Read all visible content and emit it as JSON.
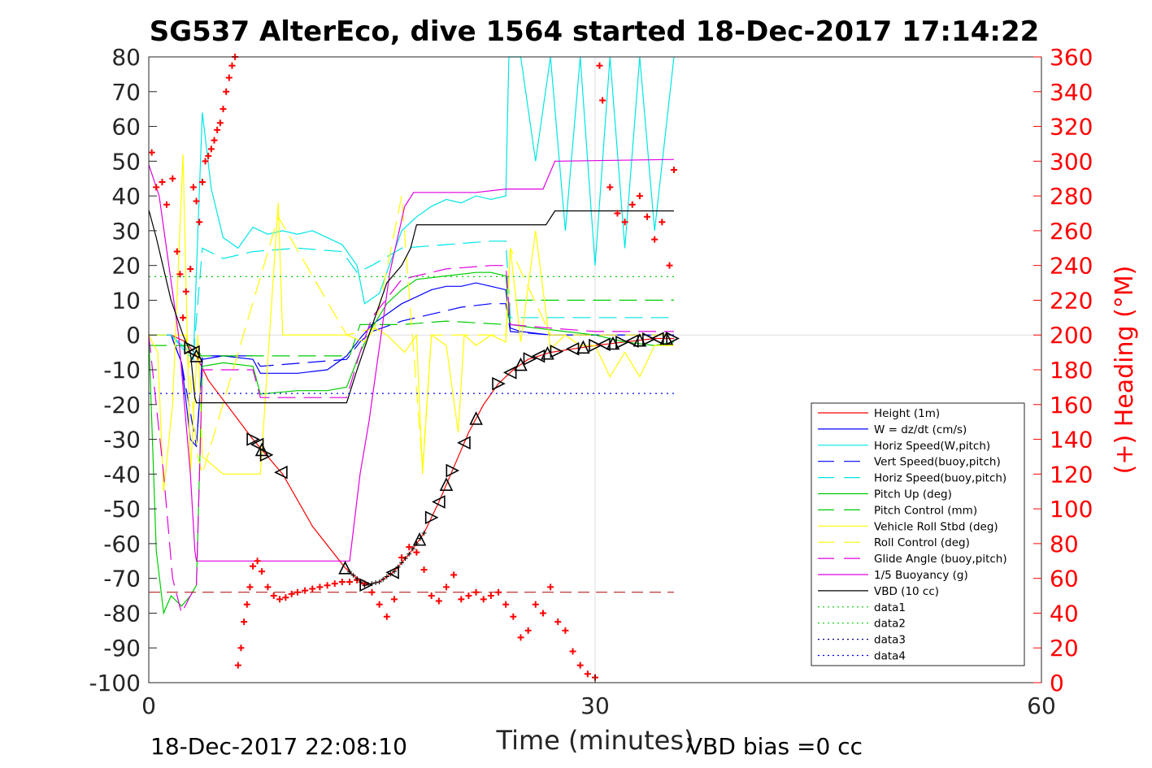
{
  "chart_data": {
    "type": "line",
    "title": "SG537 AlterEco, dive 1564 started 18-Dec-2017 17:14:22",
    "xlabel": "Time (minutes)",
    "ylabel_right": "(+) Heading (°M)",
    "footer_left": "18-Dec-2017 22:08:10",
    "footer_right": "VBD bias =0 cc",
    "xlim": [
      0,
      60
    ],
    "ylim_left": [
      -100,
      80
    ],
    "ylim_right": [
      0,
      360
    ],
    "x_ticks": [
      "0",
      "30",
      "60"
    ],
    "y_left_ticks": [
      "80",
      "70",
      "60",
      "50",
      "40",
      "30",
      "20",
      "10",
      "0",
      "-10",
      "-20",
      "-30",
      "-40",
      "-50",
      "-60",
      "-70",
      "-80",
      "-90",
      "-100"
    ],
    "y_right_ticks": [
      "360",
      "340",
      "320",
      "300",
      "280",
      "260",
      "240",
      "220",
      "200",
      "180",
      "160",
      "140",
      "120",
      "100",
      "80",
      "60",
      "40",
      "20",
      "0"
    ],
    "grid": "x at 30 and y at 0 only",
    "legend_position": "lower-right inside plot",
    "colors": {
      "height": "#ff0000",
      "w": "#0000ff",
      "cyan": "#00e5e5",
      "green": "#00cc00",
      "yellow": "#ffff00",
      "magenta": "#e000e0",
      "black": "#000000",
      "heading": "#ff0000"
    },
    "legend": [
      {
        "label": "Height (1m)",
        "color": "#ff0000",
        "style": "solid"
      },
      {
        "label": "W = dz/dt (cm/s)",
        "color": "#0000ff",
        "style": "solid"
      },
      {
        "label": "Horiz Speed(W,pitch)",
        "color": "#00e5e5",
        "style": "solid"
      },
      {
        "label": "Vert Speed(buoy,pitch)",
        "color": "#0000ff",
        "style": "dashed"
      },
      {
        "label": "Horiz Speed(buoy,pitch)",
        "color": "#00e5e5",
        "style": "dashed"
      },
      {
        "label": "Pitch Up (deg)",
        "color": "#00cc00",
        "style": "solid"
      },
      {
        "label": "Pitch Control (mm)",
        "color": "#00cc00",
        "style": "dashed"
      },
      {
        "label": "Vehicle Roll Stbd (deg)",
        "color": "#ffff00",
        "style": "solid"
      },
      {
        "label": "Roll Control (deg)",
        "color": "#ffff00",
        "style": "dashed"
      },
      {
        "label": "Glide Angle (buoy,pitch)",
        "color": "#e000e0",
        "style": "dashed"
      },
      {
        "label": "1/5 Buoyancy (g)",
        "color": "#e000e0",
        "style": "solid"
      },
      {
        "label": "VBD (10 cc)",
        "color": "#000000",
        "style": "solid"
      },
      {
        "label": "data1",
        "color": "#00cc00",
        "style": "dotted"
      },
      {
        "label": "data2",
        "color": "#00cc00",
        "style": "dotted"
      },
      {
        "label": "data3",
        "color": "#000080",
        "style": "dotted"
      },
      {
        "label": "data4",
        "color": "#0000ff",
        "style": "dotted"
      }
    ],
    "series": [
      {
        "name": "Height (1m)",
        "x": [
          0,
          1.5,
          2.5,
          3.2,
          4,
          7,
          9,
          11,
          13.2,
          14.5,
          15.5,
          16.5,
          17.5,
          18.5,
          19.5,
          20.5,
          21.5,
          22.5,
          23.5,
          24.5,
          25.5,
          27,
          28.5,
          30,
          32,
          34,
          35.3
        ],
        "y": [
          0,
          0,
          -2,
          -6,
          -13,
          -30,
          -40,
          -55,
          -67,
          -72,
          -71,
          -68,
          -63,
          -57,
          -48,
          -38,
          -28,
          -20,
          -14,
          -10,
          -7,
          -5,
          -4,
          -3,
          -2,
          -1,
          -1
        ]
      },
      {
        "name": "W = dz/dt (cm/s)",
        "x": [
          0,
          1.5,
          2.2,
          2.8,
          3.2,
          3.6,
          5,
          7,
          7.5,
          10,
          12,
          13.3,
          14.2,
          15,
          16,
          17,
          18,
          19,
          20,
          21,
          22,
          23,
          24,
          24.3,
          25,
          27,
          30,
          32,
          34,
          35.3
        ],
        "y": [
          0,
          0,
          -8,
          -30,
          -32,
          -7,
          -6,
          -7,
          -11,
          -11,
          -10,
          -6,
          -1,
          3,
          6,
          9,
          11,
          13,
          14,
          14,
          15,
          14,
          13,
          2,
          1,
          0,
          0,
          0,
          0,
          0
        ]
      },
      {
        "name": "Vert Speed(buoy,pitch)",
        "x": [
          0,
          1.5,
          2.2,
          3.2,
          3.6,
          7,
          7.5,
          13.3,
          14.2,
          15,
          17,
          19,
          21,
          23,
          24,
          24.3,
          27,
          30,
          35.3
        ],
        "y": [
          0,
          0,
          -8,
          -32,
          -6,
          -6,
          -9,
          -7,
          -2,
          1,
          4,
          6,
          8,
          9,
          9,
          1,
          0,
          0,
          0
        ]
      },
      {
        "name": "Horiz Speed(W,pitch)",
        "x": [
          0,
          1.5,
          2.5,
          3.0,
          3.3,
          3.6,
          4.2,
          5,
          6,
          7,
          8,
          9,
          10,
          11,
          12,
          13,
          14,
          14.5,
          15.5,
          17,
          18,
          19,
          20,
          21,
          22,
          23,
          24,
          24.2,
          25,
          26,
          27,
          28,
          29,
          30,
          31,
          32,
          33,
          34,
          35.3
        ],
        "y": [
          0,
          0,
          -5,
          -7,
          30,
          64,
          42,
          28,
          25,
          31,
          29,
          30,
          29,
          30,
          28,
          26,
          20,
          9,
          12,
          30,
          34,
          37,
          39,
          38,
          40,
          39,
          40,
          80,
          80,
          50,
          80,
          30,
          80,
          20,
          80,
          25,
          80,
          30,
          80
        ]
      },
      {
        "name": "Horiz Speed(buoy,pitch)",
        "x": [
          0,
          1.5,
          3.0,
          3.6,
          5,
          7,
          10,
          13,
          14,
          15,
          17,
          20,
          23,
          24,
          24.3,
          30,
          35.3
        ],
        "y": [
          0,
          0,
          -6,
          25,
          22,
          24,
          25,
          24,
          18,
          20,
          25,
          26,
          27,
          27,
          5,
          5,
          5
        ]
      },
      {
        "name": "Pitch Up (deg)",
        "x": [
          0,
          0.5,
          1.0,
          1.5,
          2.2,
          2.8,
          3.2,
          3.6,
          5,
          7,
          7.5,
          10,
          12,
          13.3,
          14.2,
          15,
          16,
          17,
          18,
          20,
          22,
          23,
          24,
          24.3,
          26,
          28,
          30,
          32,
          34,
          35.3
        ],
        "y": [
          0,
          -62,
          -80,
          -75,
          -78,
          -75,
          -72,
          -9,
          -8,
          -9,
          -17,
          -16,
          -16,
          -15,
          -5,
          2,
          9,
          13,
          16,
          17,
          18,
          18,
          17,
          3,
          2,
          1,
          0,
          -2,
          -3,
          -2
        ]
      },
      {
        "name": "Pitch Control (mm)",
        "x": [
          0,
          2.5,
          3.2,
          3.5,
          7,
          7.5,
          13,
          13.5,
          14.2,
          17,
          20,
          24,
          24.3,
          30,
          35.3
        ],
        "y": [
          -3,
          -3,
          -3,
          -6,
          -6,
          -6,
          -6,
          -6,
          3,
          3,
          4,
          3,
          10,
          10,
          10
        ]
      },
      {
        "name": "Vehicle Roll Stbd (deg)",
        "x": [
          0,
          0.6,
          1.0,
          1.6,
          2.3,
          2.8,
          3.3,
          3.6,
          5,
          7,
          7.5,
          8.7,
          9.0,
          13.3,
          14.5,
          15.2,
          16,
          17.2,
          18,
          18.4,
          19,
          20,
          20.8,
          21.2,
          22,
          23,
          24,
          24.3,
          25,
          26,
          27,
          28,
          29,
          30,
          31,
          32,
          33,
          34,
          35.3
        ],
        "y": [
          0,
          -5,
          -45,
          -20,
          52,
          -40,
          0,
          -35,
          -40,
          -40,
          -40,
          38,
          0,
          0,
          -2,
          2,
          0,
          -5,
          0,
          -40,
          0,
          -3,
          -28,
          0,
          -3,
          0,
          -2,
          25,
          -2,
          30,
          -4,
          0,
          -3,
          -3,
          -12,
          -5,
          -12,
          -3,
          -3
        ]
      },
      {
        "name": "Roll Control (deg)",
        "x": [
          0,
          2.5,
          3.3,
          3.6,
          8.7,
          13.3,
          15.2,
          17,
          18.4,
          19,
          20,
          22,
          24,
          24.3,
          27,
          30,
          35.3
        ],
        "y": [
          0,
          0,
          -35,
          -40,
          34,
          0,
          2,
          40,
          -38,
          0,
          0,
          0,
          0,
          25,
          0,
          0,
          0
        ]
      },
      {
        "name": "Glide Angle (buoy,pitch)",
        "x": [
          0,
          1.0,
          1.6,
          2.2,
          2.8,
          3.2,
          3.6,
          7,
          7.5,
          13.3,
          14.2,
          15,
          17,
          20,
          23,
          24,
          24.3,
          27,
          30,
          35.3
        ],
        "y": [
          0,
          -40,
          -70,
          -80,
          -75,
          -72,
          -10,
          -10,
          -18,
          -18,
          -5,
          5,
          16,
          19,
          20,
          20,
          3,
          2,
          1,
          1
        ]
      },
      {
        "name": "1/5 Buoyancy (g)",
        "x": [
          0,
          0.7,
          2.0,
          2.8,
          3.1,
          3.2,
          8,
          13.5,
          14.2,
          14.8,
          16.2,
          17.2,
          17.8,
          22,
          24,
          26.5,
          27.3,
          27.5,
          35.3
        ],
        "y": [
          49,
          40,
          0,
          -40,
          -62,
          -65,
          -65,
          -65,
          -40,
          -25,
          18,
          37,
          41,
          41,
          42,
          42,
          50,
          50,
          50.5
        ]
      },
      {
        "name": "VBD (10 cc)",
        "x": [
          0,
          0.5,
          1.5,
          2.3,
          2.8,
          3.1,
          3.2,
          13.3,
          14.0,
          14.8,
          16.0,
          17.0,
          17.6,
          18.0,
          24.5,
          26.7,
          27.3,
          35.3
        ],
        "y": [
          36,
          28,
          10,
          0,
          -5,
          -18,
          -19.5,
          -19.5,
          -10,
          0,
          15,
          20,
          25,
          31.7,
          31.7,
          31.7,
          35.7,
          35.7
        ]
      },
      {
        "name": "data1",
        "x": [
          0,
          35.3
        ],
        "y": [
          16.8,
          16.8
        ]
      },
      {
        "name": "data4",
        "x": [
          0,
          35.3
        ],
        "y": [
          -16.8,
          -16.8
        ]
      },
      {
        "name": "Heading",
        "x": [
          0.2,
          0.5,
          0.9,
          1.2,
          1.6,
          1.9,
          2.1,
          2.3,
          2.5,
          2.8,
          3.0,
          3.2,
          3.4,
          3.6,
          3.8,
          4.0,
          4.2,
          4.4,
          4.6,
          4.8,
          5.0,
          5.2,
          5.4,
          5.6,
          5.8,
          6.0,
          6.2,
          6.4,
          6.6,
          6.8,
          7.0,
          7.3,
          7.6,
          8.0,
          8.4,
          8.8,
          9.2,
          9.6,
          10.0,
          10.5,
          11,
          11.5,
          12,
          12.5,
          13,
          13.5,
          14,
          14.5,
          15,
          15.5,
          16,
          16.5,
          17,
          17.5,
          18,
          18.5,
          19,
          19.5,
          20,
          20.5,
          21,
          21.5,
          22,
          22.5,
          23,
          23.5,
          24,
          24.5,
          25,
          25.5,
          26,
          26.5,
          27,
          27.5,
          28,
          28.5,
          29,
          29.5,
          30,
          30.3,
          30.5,
          31,
          31.5,
          32,
          32.5,
          33,
          33.5,
          34,
          34.5,
          35,
          35.3
        ],
        "y": [
          305,
          285,
          288,
          275,
          290,
          248,
          235,
          210,
          225,
          238,
          285,
          277,
          265,
          288,
          300,
          303,
          307,
          312,
          318,
          322,
          330,
          340,
          348,
          355,
          360,
          10,
          20,
          35,
          45,
          55,
          67,
          70,
          64,
          55,
          50,
          48,
          49,
          51,
          52,
          53,
          54,
          55,
          56,
          57,
          58,
          58,
          59,
          57,
          52,
          45,
          38,
          48,
          72,
          78,
          75,
          65,
          50,
          47,
          55,
          62,
          48,
          50,
          52,
          48,
          50,
          52,
          45,
          38,
          26,
          30,
          45,
          40,
          55,
          35,
          30,
          18,
          10,
          5,
          3,
          355,
          335,
          285,
          270,
          265,
          275,
          280,
          268,
          255,
          265,
          240,
          295
        ]
      }
    ]
  }
}
